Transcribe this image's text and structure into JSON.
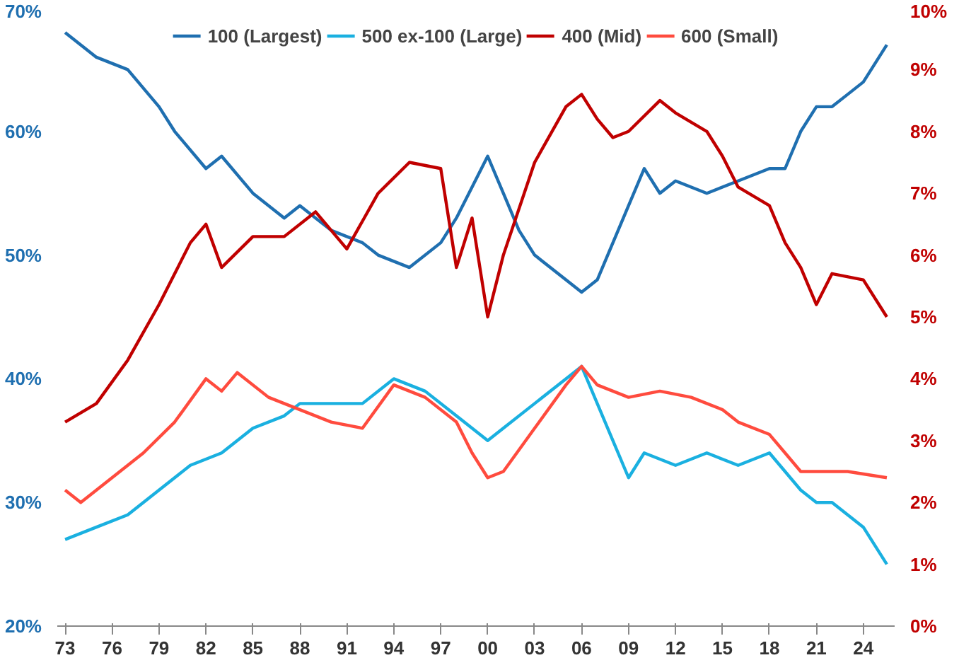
{
  "chart_data": {
    "type": "line",
    "legend": "top",
    "grid": false,
    "xlim": [
      1972.5,
      2026
    ],
    "xticks": [
      {
        "value": 1973,
        "label": "73"
      },
      {
        "value": 1976,
        "label": "76"
      },
      {
        "value": 1979,
        "label": "79"
      },
      {
        "value": 1982,
        "label": "82"
      },
      {
        "value": 1985,
        "label": "85"
      },
      {
        "value": 1988,
        "label": "88"
      },
      {
        "value": 1991,
        "label": "91"
      },
      {
        "value": 1994,
        "label": "94"
      },
      {
        "value": 1997,
        "label": "97"
      },
      {
        "value": 2000,
        "label": "00"
      },
      {
        "value": 2003,
        "label": "03"
      },
      {
        "value": 2006,
        "label": "06"
      },
      {
        "value": 2009,
        "label": "09"
      },
      {
        "value": 2012,
        "label": "12"
      },
      {
        "value": 2015,
        "label": "15"
      },
      {
        "value": 2018,
        "label": "18"
      },
      {
        "value": 2021,
        "label": "21"
      },
      {
        "value": 2024,
        "label": "24"
      }
    ],
    "ylim": [
      20,
      70
    ],
    "yticks": [
      {
        "value": 20,
        "label": "20%"
      },
      {
        "value": 30,
        "label": "30%"
      },
      {
        "value": 40,
        "label": "40%"
      },
      {
        "value": 50,
        "label": "50%"
      },
      {
        "value": 60,
        "label": "60%"
      },
      {
        "value": 70,
        "label": "70%"
      }
    ],
    "y2lim": [
      0,
      10
    ],
    "y2ticks": [
      {
        "value": 0,
        "label": "0%"
      },
      {
        "value": 1,
        "label": "1%"
      },
      {
        "value": 2,
        "label": "2%"
      },
      {
        "value": 3,
        "label": "3%"
      },
      {
        "value": 4,
        "label": "4%"
      },
      {
        "value": 5,
        "label": "5%"
      },
      {
        "value": 6,
        "label": "6%"
      },
      {
        "value": 7,
        "label": "7%"
      },
      {
        "value": 8,
        "label": "8%"
      },
      {
        "value": 9,
        "label": "9%"
      },
      {
        "value": 10,
        "label": "10%"
      }
    ],
    "series": [
      {
        "name": "100 (Largest)",
        "color": "#1f6fb0",
        "x": [
          1973,
          1975,
          1977,
          1979,
          1980,
          1982,
          1983,
          1985,
          1987,
          1988,
          1990,
          1992,
          1993,
          1995,
          1997,
          1998,
          2000,
          2001,
          2002,
          2003,
          2005,
          2006,
          2007,
          2009,
          2010,
          2011,
          2012,
          2014,
          2016,
          2018,
          2019,
          2020,
          2021,
          2022,
          2023,
          2024,
          2025.5
        ],
        "values": [
          68,
          66,
          65,
          62,
          60,
          57,
          58,
          55,
          53,
          54,
          52,
          51,
          50,
          49,
          51,
          53,
          58,
          55,
          52,
          50,
          48,
          47,
          48,
          54,
          57,
          55,
          56,
          55,
          56,
          57,
          57,
          60,
          62,
          62,
          63,
          64,
          67
        ]
      },
      {
        "name": "500 ex-100 (Large)",
        "color": "#1ab0e0",
        "x": [
          1973,
          1975,
          1977,
          1979,
          1981,
          1983,
          1985,
          1987,
          1988,
          1990,
          1992,
          1994,
          1996,
          1998,
          2000,
          2001,
          2003,
          2005,
          2006,
          2007,
          2008,
          2009,
          2010,
          2012,
          2014,
          2016,
          2018,
          2020,
          2021,
          2022,
          2024,
          2025.5
        ],
        "values": [
          27,
          28,
          29,
          31,
          33,
          34,
          36,
          37,
          38,
          38,
          38,
          40,
          39,
          37,
          35,
          36,
          38,
          40,
          41,
          38,
          35,
          32,
          34,
          33,
          34,
          33,
          34,
          31,
          30,
          30,
          28,
          25
        ]
      },
      {
        "name": "400 (Mid)",
        "color": "#c00000",
        "axis": "y2",
        "x": [
          1973,
          1975,
          1977,
          1979,
          1981,
          1982,
          1983,
          1985,
          1987,
          1989,
          1991,
          1993,
          1995,
          1997,
          1998,
          1999,
          2000,
          2001,
          2003,
          2005,
          2006,
          2007,
          2008,
          2009,
          2011,
          2012,
          2014,
          2015,
          2016,
          2018,
          2019,
          2020,
          2021,
          2022,
          2024,
          2025.5
        ],
        "values": [
          3.3,
          3.6,
          4.3,
          5.2,
          6.2,
          6.5,
          5.8,
          6.3,
          6.3,
          6.7,
          6.1,
          7.0,
          7.5,
          7.4,
          5.8,
          6.6,
          5.0,
          6.0,
          7.5,
          8.4,
          8.6,
          8.2,
          7.9,
          8.0,
          8.5,
          8.3,
          8.0,
          7.6,
          7.1,
          6.8,
          6.2,
          5.8,
          5.2,
          5.7,
          5.6,
          5.0
        ]
      },
      {
        "name": "600 (Small)",
        "color": "#ff4b3e",
        "axis": "y2",
        "x": [
          1973,
          1974,
          1976,
          1978,
          1980,
          1982,
          1983,
          1984,
          1986,
          1988,
          1990,
          1992,
          1994,
          1996,
          1998,
          1999,
          2000,
          2001,
          2003,
          2005,
          2006,
          2007,
          2009,
          2011,
          2013,
          2015,
          2016,
          2018,
          2019,
          2020,
          2022,
          2023,
          2025.5
        ],
        "values": [
          2.2,
          2.0,
          2.4,
          2.8,
          3.3,
          4.0,
          3.8,
          4.1,
          3.7,
          3.5,
          3.3,
          3.2,
          3.9,
          3.7,
          3.3,
          2.8,
          2.4,
          2.5,
          3.2,
          3.9,
          4.2,
          3.9,
          3.7,
          3.8,
          3.7,
          3.5,
          3.3,
          3.1,
          2.8,
          2.5,
          2.5,
          2.5,
          2.4
        ]
      }
    ]
  }
}
